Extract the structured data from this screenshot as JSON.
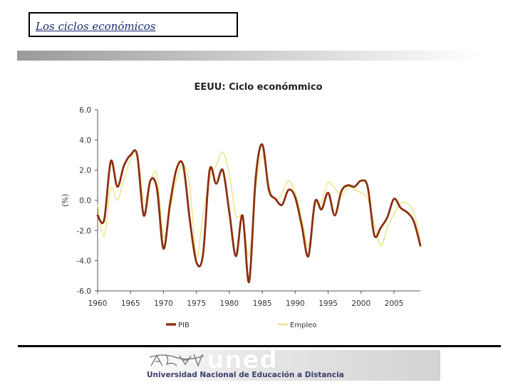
{
  "slide": {
    "title": "Los ciclos económicos",
    "logo_word": "uned",
    "logo_subtitle": "Universidad Nacional de Educación a Distancia"
  },
  "colors": {
    "pib": "#8b3010",
    "empleo": "#e8e070",
    "title_text": "#1a2a6e"
  },
  "chart_data": {
    "type": "line",
    "title": "EEUU: Ciclo económmico",
    "xlabel": "",
    "ylabel": "(%)",
    "xlim": [
      1960,
      2009
    ],
    "ylim": [
      -6,
      6
    ],
    "x_ticks": [
      1960,
      1965,
      1970,
      1975,
      1980,
      1985,
      1990,
      1995,
      2000,
      2005
    ],
    "y_ticks": [
      6,
      4,
      2,
      0,
      -2,
      -4,
      -6
    ],
    "y_tick_labels": [
      "6.0",
      "4.0",
      "2.0",
      "0.0",
      "-2.0",
      "-4.0",
      "-6.0"
    ],
    "legend_position": "bottom",
    "series": [
      {
        "name": "PIB",
        "points": [
          [
            1960,
            -1.0
          ],
          [
            1961,
            -1.3
          ],
          [
            1962,
            2.6
          ],
          [
            1963,
            0.9
          ],
          [
            1964,
            2.3
          ],
          [
            1965,
            3.0
          ],
          [
            1966,
            3.0
          ],
          [
            1967,
            -1.0
          ],
          [
            1968,
            1.3
          ],
          [
            1969,
            0.8
          ],
          [
            1970,
            -3.2
          ],
          [
            1971,
            -0.2
          ],
          [
            1972,
            2.1
          ],
          [
            1973,
            2.3
          ],
          [
            1974,
            -1.3
          ],
          [
            1975,
            -4.1
          ],
          [
            1976,
            -3.6
          ],
          [
            1977,
            2.0
          ],
          [
            1978,
            1.1
          ],
          [
            1979,
            2.0
          ],
          [
            1980,
            -0.8
          ],
          [
            1981,
            -3.7
          ],
          [
            1982,
            -1.0
          ],
          [
            1983,
            -5.4
          ],
          [
            1984,
            1.5
          ],
          [
            1985,
            3.7
          ],
          [
            1986,
            0.7
          ],
          [
            1987,
            0.1
          ],
          [
            1988,
            -0.3
          ],
          [
            1989,
            0.7
          ],
          [
            1990,
            0.2
          ],
          [
            1991,
            -1.7
          ],
          [
            1992,
            -3.7
          ],
          [
            1993,
            -0.1
          ],
          [
            1994,
            -0.6
          ],
          [
            1995,
            0.5
          ],
          [
            1996,
            -1.0
          ],
          [
            1997,
            0.6
          ],
          [
            1998,
            1.0
          ],
          [
            1999,
            0.9
          ],
          [
            2000,
            1.3
          ],
          [
            2001,
            0.9
          ],
          [
            2002,
            -2.3
          ],
          [
            2003,
            -1.8
          ],
          [
            2004,
            -1.1
          ],
          [
            2005,
            0.1
          ],
          [
            2006,
            -0.5
          ],
          [
            2007,
            -0.8
          ],
          [
            2008,
            -1.4
          ],
          [
            2009,
            -3.0
          ]
        ]
      },
      {
        "name": "Empleo",
        "points": [
          [
            1960,
            -0.3
          ],
          [
            1961,
            -2.4
          ],
          [
            1962,
            0.8
          ],
          [
            1963,
            0.0
          ],
          [
            1964,
            1.4
          ],
          [
            1965,
            2.7
          ],
          [
            1966,
            3.2
          ],
          [
            1967,
            0.0
          ],
          [
            1968,
            1.3
          ],
          [
            1969,
            1.7
          ],
          [
            1970,
            -2.4
          ],
          [
            1971,
            -0.6
          ],
          [
            1972,
            1.4
          ],
          [
            1973,
            2.4
          ],
          [
            1974,
            0.9
          ],
          [
            1975,
            -3.7
          ],
          [
            1976,
            -1.0
          ],
          [
            1977,
            1.4
          ],
          [
            1978,
            2.3
          ],
          [
            1979,
            3.2
          ],
          [
            1980,
            1.7
          ],
          [
            1981,
            -1.0
          ],
          [
            1982,
            -1.1
          ],
          [
            1983,
            -3.7
          ],
          [
            1984,
            0.8
          ],
          [
            1985,
            3.0
          ],
          [
            1986,
            1.0
          ],
          [
            1987,
            0.0
          ],
          [
            1988,
            0.5
          ],
          [
            1989,
            1.3
          ],
          [
            1990,
            0.5
          ],
          [
            1991,
            -1.2
          ],
          [
            1992,
            -3.0
          ],
          [
            1993,
            -0.4
          ],
          [
            1994,
            -0.1
          ],
          [
            1995,
            1.2
          ],
          [
            1996,
            0.8
          ],
          [
            1997,
            0.3
          ],
          [
            1998,
            0.9
          ],
          [
            1999,
            0.7
          ],
          [
            2000,
            0.5
          ],
          [
            2001,
            0.1
          ],
          [
            2002,
            -1.5
          ],
          [
            2003,
            -3.0
          ],
          [
            2004,
            -1.8
          ],
          [
            2005,
            -0.9
          ],
          [
            2006,
            -0.2
          ],
          [
            2007,
            -0.2
          ],
          [
            2008,
            -0.8
          ],
          [
            2009,
            -2.6
          ]
        ]
      }
    ]
  }
}
